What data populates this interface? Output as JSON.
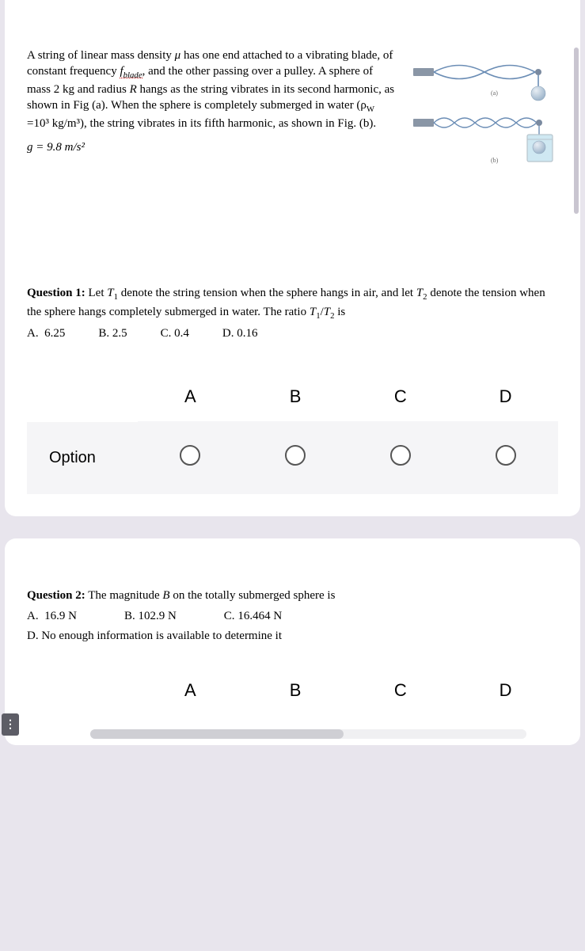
{
  "intro": {
    "paragraph_html": "A string of linear mass density <span class='ital'>μ</span> has one end attached to a vibrating blade, of constant frequency <span class='ital dotted-underline'>f<sub>blade</sub></span>, and the other passing over a pulley. A sphere of mass 2 kg and radius <span class='ital'>R</span> hangs as the string vibrates in its second harmonic, as shown in Fig (a). When the sphere is completely submerged in water (ρ<sub>W</sub> =10³ kg/m³), the string vibrates in its fifth harmonic, as shown in Fig. (b).",
    "g_html": "<span class='ital'>g</span> = 9.8 m/s²"
  },
  "q1": {
    "prompt_html": "<b>Question 1:</b> Let <span class='ital'>T</span><sub>1</sub> denote the string tension when the sphere hangs in air, and let <span class='ital'>T</span><sub>2</sub> denote the tension when the sphere hangs completely submerged in water. The ratio <span class='ital'>T</span><sub>1</sub>/<span class='ital'>T</span><sub>2</sub> is",
    "options": {
      "A": "6.25",
      "B": "2.5",
      "C": "0.4",
      "D": "0.16"
    },
    "grid": {
      "headers": [
        "A",
        "B",
        "C",
        "D"
      ],
      "rowlabel": "Option"
    }
  },
  "q2": {
    "prompt_html": "<b>Question 2:</b> The magnitude <span class='ital'>B</span> on the totally submerged sphere is",
    "options": {
      "A": "16.9 N",
      "B": "102.9 N",
      "C": "16.464 N",
      "D": "No enough information is available to determine it"
    },
    "grid": {
      "headers": [
        "A",
        "B",
        "C",
        "D"
      ]
    }
  },
  "figure": {
    "label_a": "(a)",
    "label_b": "(b)",
    "colors": {
      "string": "#6b8db5",
      "blade": "#8a96a6",
      "pulley": "#7a8aa0",
      "sphere_grad_top": "#e8eef4",
      "sphere_grad_bot": "#9fb6cc",
      "water": "#cfe8f2",
      "beaker": "#b8c4cc"
    }
  }
}
